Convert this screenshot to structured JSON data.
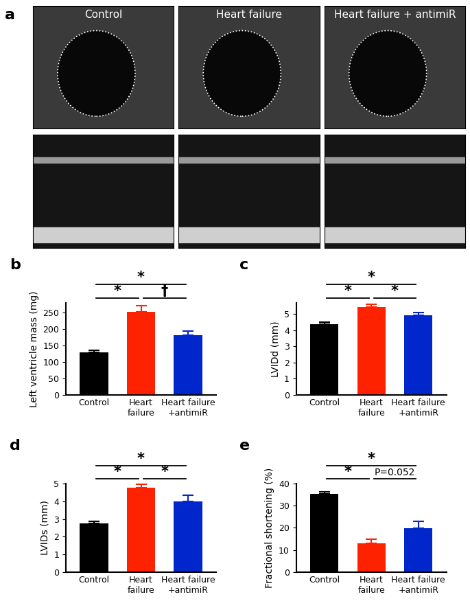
{
  "images": {
    "title": "a",
    "labels": [
      "Control",
      "Heart failure",
      "Heart failure + antimiR"
    ]
  },
  "chart_data": [
    {
      "type": "bar",
      "title": "b",
      "y_label": "Left ventricle mass (mg)",
      "categories": [
        "Control",
        "Heart\nfailure",
        "Heart failure\n+antimiR"
      ],
      "values": [
        130,
        252,
        182
      ],
      "errors": [
        6,
        20,
        13
      ],
      "colors": [
        "#000000",
        "#ff2200",
        "#0026cc"
      ],
      "ylim": [
        0,
        280
      ],
      "yticks": [
        0,
        50,
        100,
        150,
        200,
        250
      ],
      "comparisons": [
        {
          "between": [
            0,
            2
          ],
          "text": "*"
        },
        {
          "between": [
            0,
            1
          ],
          "text": "*"
        },
        {
          "between": [
            1,
            2
          ],
          "text": "†"
        }
      ]
    },
    {
      "type": "bar",
      "title": "c",
      "y_label": "LVIDd (mm)",
      "categories": [
        "Control",
        "Heart\nfailure",
        "Heart failure\n+antimiR"
      ],
      "values": [
        4.4,
        5.45,
        4.92
      ],
      "errors": [
        0.1,
        0.15,
        0.2
      ],
      "colors": [
        "#000000",
        "#ff2200",
        "#0026cc"
      ],
      "ylim": [
        0,
        5.7
      ],
      "yticks": [
        0,
        1,
        2,
        3,
        4,
        5
      ],
      "comparisons": [
        {
          "between": [
            0,
            2
          ],
          "text": "*"
        },
        {
          "between": [
            0,
            1
          ],
          "text": "*"
        },
        {
          "between": [
            1,
            2
          ],
          "text": "*"
        }
      ]
    },
    {
      "type": "bar",
      "title": "d",
      "y_label": "LVIDs (mm)",
      "categories": [
        "Control",
        "Heart\nfailure",
        "Heart failure\n+antimiR"
      ],
      "values": [
        2.77,
        4.77,
        3.98
      ],
      "errors": [
        0.08,
        0.2,
        0.35
      ],
      "colors": [
        "#000000",
        "#ff2200",
        "#0026cc"
      ],
      "ylim": [
        0,
        5
      ],
      "yticks": [
        0,
        1,
        2,
        3,
        4,
        5
      ],
      "comparisons": [
        {
          "between": [
            0,
            2
          ],
          "text": "*"
        },
        {
          "between": [
            0,
            1
          ],
          "text": "*"
        },
        {
          "between": [
            1,
            2
          ],
          "text": "*"
        }
      ]
    },
    {
      "type": "bar",
      "title": "e",
      "y_label": "Fractional shortening (%)",
      "categories": [
        "Control",
        "Heart\nfailure",
        "Heart failure\n+antimiR"
      ],
      "values": [
        35.2,
        13.0,
        19.8
      ],
      "errors": [
        1.2,
        1.8,
        3.2
      ],
      "colors": [
        "#000000",
        "#ff2200",
        "#0026cc"
      ],
      "ylim": [
        0,
        40
      ],
      "yticks": [
        0,
        10,
        20,
        30,
        40
      ],
      "comparisons": [
        {
          "between": [
            0,
            2
          ],
          "text": "*"
        },
        {
          "between": [
            0,
            1
          ],
          "text": "*"
        },
        {
          "between": [
            1,
            2
          ],
          "text": "P=0.052"
        }
      ]
    }
  ]
}
